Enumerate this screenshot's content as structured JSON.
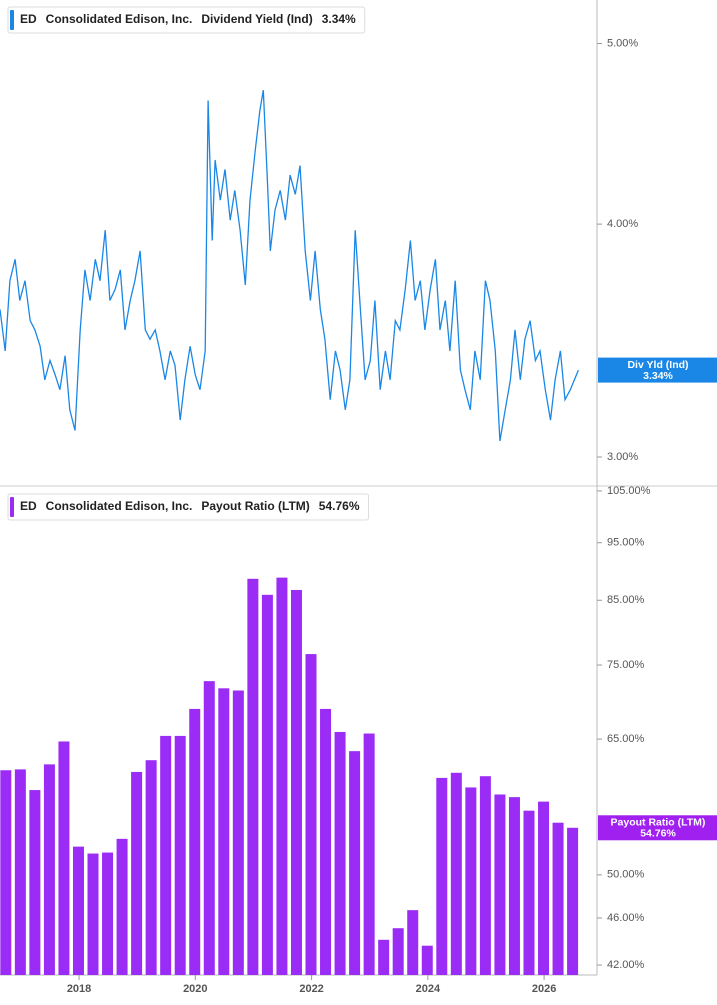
{
  "chart_data": [
    {
      "type": "line",
      "ticker": "ED",
      "company": "Consolidated Edison, Inc.",
      "current_label": "3.34%",
      "badge_label": "Div Yld (Ind)",
      "log_scale": true,
      "ylim": [
        2.898,
        5.276
      ],
      "yticks": [
        {
          "value": 3,
          "label": "3.00%"
        },
        {
          "value": 4,
          "label": "4.00%"
        },
        {
          "value": 5,
          "label": "5.00%"
        }
      ],
      "xlim": [
        2016.64,
        2026.91
      ],
      "x": [
        2016.64,
        2016.73,
        2016.81,
        2016.9,
        2016.98,
        2017.07,
        2017.16,
        2017.24,
        2017.33,
        2017.41,
        2017.5,
        2017.59,
        2017.67,
        2017.76,
        2017.84,
        2017.93,
        2018.02,
        2018.1,
        2018.19,
        2018.28,
        2018.36,
        2018.45,
        2018.53,
        2018.62,
        2018.71,
        2018.79,
        2018.88,
        2018.96,
        2019.05,
        2019.14,
        2019.22,
        2019.31,
        2019.39,
        2019.48,
        2019.57,
        2019.65,
        2019.74,
        2019.82,
        2019.91,
        2020.0,
        2020.08,
        2020.17,
        2020.22,
        2020.29,
        2020.34,
        2020.43,
        2020.51,
        2020.6,
        2020.68,
        2020.77,
        2020.86,
        2020.94,
        2021.03,
        2021.11,
        2021.17,
        2021.24,
        2021.29,
        2021.37,
        2021.46,
        2021.55,
        2021.63,
        2021.72,
        2021.8,
        2021.89,
        2021.98,
        2022.06,
        2022.15,
        2022.23,
        2022.32,
        2022.41,
        2022.49,
        2022.58,
        2022.66,
        2022.75,
        2022.84,
        2022.92,
        2023.01,
        2023.09,
        2023.18,
        2023.27,
        2023.35,
        2023.44,
        2023.52,
        2023.61,
        2023.7,
        2023.78,
        2023.87,
        2023.95,
        2024.04,
        2024.13,
        2024.21,
        2024.3,
        2024.38,
        2024.47,
        2024.56,
        2024.64,
        2024.73,
        2024.81,
        2024.9,
        2024.99,
        2025.07,
        2025.16,
        2025.24,
        2025.33,
        2025.42,
        2025.5,
        2025.59,
        2025.67,
        2025.76,
        2025.85,
        2025.93,
        2026.02,
        2026.11,
        2026.19,
        2026.28,
        2026.36,
        2026.45,
        2026.59
      ],
      "series": [
        {
          "name": "Dividend Yield (Ind)",
          "color": "#1a87e6",
          "values": [
            3.6,
            3.42,
            3.73,
            3.83,
            3.64,
            3.73,
            3.55,
            3.51,
            3.44,
            3.3,
            3.38,
            3.32,
            3.26,
            3.4,
            3.18,
            3.1,
            3.51,
            3.78,
            3.64,
            3.83,
            3.73,
            3.97,
            3.64,
            3.69,
            3.78,
            3.51,
            3.64,
            3.73,
            3.87,
            3.51,
            3.47,
            3.51,
            3.42,
            3.3,
            3.42,
            3.36,
            3.14,
            3.3,
            3.44,
            3.32,
            3.26,
            3.42,
            4.66,
            3.92,
            4.33,
            4.12,
            4.28,
            4.02,
            4.17,
            3.97,
            3.71,
            4.12,
            4.38,
            4.6,
            4.72,
            4.22,
            3.87,
            4.07,
            4.17,
            4.02,
            4.25,
            4.15,
            4.3,
            3.87,
            3.64,
            3.87,
            3.6,
            3.47,
            3.22,
            3.42,
            3.34,
            3.18,
            3.3,
            3.97,
            3.6,
            3.3,
            3.38,
            3.64,
            3.26,
            3.42,
            3.3,
            3.55,
            3.51,
            3.69,
            3.92,
            3.64,
            3.73,
            3.51,
            3.69,
            3.83,
            3.51,
            3.64,
            3.42,
            3.73,
            3.34,
            3.26,
            3.18,
            3.42,
            3.3,
            3.73,
            3.64,
            3.42,
            3.06,
            3.18,
            3.3,
            3.51,
            3.3,
            3.47,
            3.55,
            3.38,
            3.42,
            3.26,
            3.14,
            3.3,
            3.42,
            3.22,
            3.26,
            3.34
          ]
        }
      ]
    },
    {
      "type": "bar",
      "ticker": "ED",
      "company": "Consolidated Edison, Inc.",
      "current_label": "54.76%",
      "badge_label": "Payout Ratio (LTM)",
      "log_scale": true,
      "ylim": [
        41.2,
        105.8
      ],
      "yticks": [
        {
          "value": 42,
          "label": "42.00%"
        },
        {
          "value": 46,
          "label": "46.00%"
        },
        {
          "value": 50,
          "label": "50.00%"
        },
        {
          "value": 65,
          "label": "65.00%"
        },
        {
          "value": 75,
          "label": "75.00%"
        },
        {
          "value": 85,
          "label": "85.00%"
        },
        {
          "value": 95,
          "label": "95.00%"
        },
        {
          "value": 105,
          "label": "105.00%"
        }
      ],
      "xlim": [
        2016.64,
        2026.91
      ],
      "xticks": [
        2018,
        2020,
        2022,
        2024,
        2026
      ],
      "x": [
        2016.74,
        2016.99,
        2017.24,
        2017.49,
        2017.74,
        2017.99,
        2018.24,
        2018.49,
        2018.74,
        2018.99,
        2019.24,
        2019.49,
        2019.74,
        2019.99,
        2020.24,
        2020.49,
        2020.74,
        2020.99,
        2021.24,
        2021.49,
        2021.74,
        2021.99,
        2022.24,
        2022.49,
        2022.74,
        2022.99,
        2023.24,
        2023.49,
        2023.74,
        2023.99,
        2024.24,
        2024.49,
        2024.74,
        2024.99,
        2025.24,
        2025.49,
        2025.74,
        2025.99,
        2026.24,
        2026.49
      ],
      "series": [
        {
          "name": "Payout Ratio (LTM)",
          "color": "#9b2cf5",
          "values": [
            61.2,
            61.3,
            58.9,
            61.9,
            64.7,
            52.8,
            52.1,
            52.2,
            53.6,
            61.0,
            62.4,
            65.4,
            65.4,
            68.9,
            72.7,
            71.7,
            71.4,
            88.6,
            85.9,
            88.8,
            86.7,
            76.6,
            68.9,
            65.9,
            63.5,
            65.7,
            44.1,
            45.1,
            46.7,
            43.6,
            60.3,
            60.9,
            59.2,
            60.5,
            58.4,
            58.1,
            56.6,
            57.6,
            55.3,
            54.76
          ]
        }
      ]
    }
  ]
}
